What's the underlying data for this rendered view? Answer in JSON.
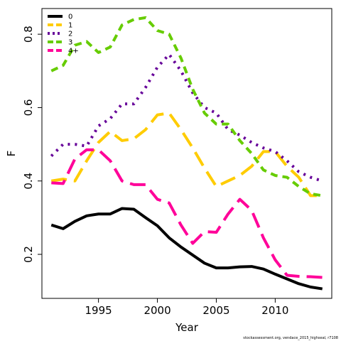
{
  "caption": "stockassessment.org, vendace_2015_highseal, r7108",
  "chart_data": {
    "type": "line",
    "xlabel": "Year",
    "ylabel": "F",
    "xlim": [
      1990.2,
      2014.8
    ],
    "ylim": [
      0.08,
      0.87
    ],
    "x_ticks": [
      1995,
      2000,
      2005,
      2010
    ],
    "y_ticks": [
      0.2,
      0.4,
      0.6,
      0.8
    ],
    "legend_position": "top-left",
    "x": [
      1991,
      1992,
      1993,
      1994,
      1995,
      1996,
      1997,
      1998,
      1999,
      2000,
      2001,
      2002,
      2003,
      2004,
      2005,
      2006,
      2007,
      2008,
      2009,
      2010,
      2011,
      2012,
      2013,
      2014
    ],
    "series": [
      {
        "name": "0",
        "color": "#000000",
        "dash": "solid",
        "values": [
          0.28,
          0.27,
          0.29,
          0.305,
          0.31,
          0.31,
          0.325,
          0.323,
          0.3,
          0.278,
          0.245,
          0.22,
          0.198,
          0.176,
          0.163,
          0.163,
          0.166,
          0.167,
          0.16,
          0.146,
          0.133,
          0.12,
          0.111,
          0.106
        ]
      },
      {
        "name": "1",
        "color": "#ffcc00",
        "dash": "long",
        "values": [
          0.4,
          0.405,
          0.4,
          0.455,
          0.505,
          0.535,
          0.51,
          0.515,
          0.54,
          0.58,
          0.585,
          0.54,
          0.49,
          0.435,
          0.385,
          0.4,
          0.415,
          0.44,
          0.48,
          0.48,
          0.44,
          0.41,
          0.36,
          0.36
        ]
      },
      {
        "name": "2",
        "color": "#660099",
        "dash": "dot",
        "values": [
          0.468,
          0.5,
          0.5,
          0.495,
          0.55,
          0.57,
          0.61,
          0.61,
          0.655,
          0.71,
          0.745,
          0.7,
          0.64,
          0.6,
          0.585,
          0.54,
          0.525,
          0.505,
          0.49,
          0.48,
          0.455,
          0.425,
          0.41,
          0.4
        ]
      },
      {
        "name": "3",
        "color": "#66cc00",
        "dash": "dash",
        "values": [
          0.7,
          0.715,
          0.77,
          0.78,
          0.75,
          0.765,
          0.825,
          0.84,
          0.845,
          0.81,
          0.8,
          0.735,
          0.65,
          0.585,
          0.555,
          0.555,
          0.51,
          0.475,
          0.43,
          0.415,
          0.41,
          0.385,
          0.365,
          0.36
        ]
      },
      {
        "name": "4+",
        "color": "#ff0099",
        "dash": "longdash",
        "values": [
          0.395,
          0.393,
          0.46,
          0.485,
          0.485,
          0.455,
          0.4,
          0.39,
          0.39,
          0.35,
          0.34,
          0.28,
          0.23,
          0.262,
          0.26,
          0.31,
          0.35,
          0.32,
          0.245,
          0.185,
          0.143,
          0.14,
          0.139,
          0.137
        ]
      }
    ]
  }
}
